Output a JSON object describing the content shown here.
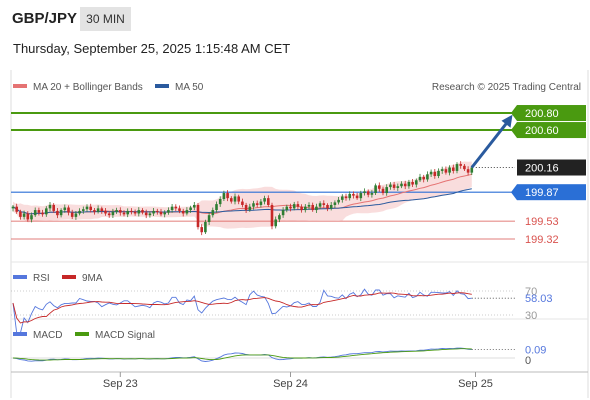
{
  "header": {
    "symbol": "GBP/JPY",
    "timeframe": "30 MIN",
    "datetime": "Thursday, September 25, 2025 1:15:48 AM CET",
    "copyright": "Research © 2025 Trading Central"
  },
  "colors": {
    "up": "#2e7d32",
    "down": "#c62828",
    "ma20": "#e57373",
    "ma50": "#2a5a9e",
    "band": "#f8d4d4",
    "target": "#4a9a10",
    "support": "#d9534f",
    "pivot": "#2a6fd6",
    "arrow": "#2a5a9e",
    "rsi": "#5577dd",
    "rsi_ma": "#c62828",
    "macd": "#5577dd",
    "macd_signal": "#4a9a10"
  },
  "chart_data": [
    {
      "type": "candlestick",
      "panel": "price",
      "legend": [
        {
          "label": "MA 20 + Bollinger Bands",
          "color_key": "ma20"
        },
        {
          "label": "MA 50",
          "color_key": "ma50"
        }
      ],
      "ylim": [
        199.05,
        201.0
      ],
      "x_ticks": [
        {
          "label": "Sep 23",
          "index": 29
        },
        {
          "label": "Sep 24",
          "index": 75
        },
        {
          "label": "Sep 25",
          "index": 125
        }
      ],
      "levels": [
        {
          "value": 200.8,
          "label": "200.80",
          "role": "target",
          "style": "label-box"
        },
        {
          "value": 200.6,
          "label": "200.60",
          "role": "target",
          "style": "label-box"
        },
        {
          "value": 200.16,
          "label": "200.16",
          "role": "last",
          "style": "dotted"
        },
        {
          "value": 199.87,
          "label": "199.87",
          "role": "pivot",
          "style": "label-box"
        },
        {
          "value": 199.53,
          "label": "199.53",
          "role": "support",
          "style": "text"
        },
        {
          "value": 199.32,
          "label": "199.32",
          "role": "support",
          "style": "text"
        }
      ],
      "arrow": {
        "from_index": 124,
        "from_value": 200.16,
        "to_index": 135,
        "to_value": 200.78
      },
      "close": [
        199.7,
        199.64,
        199.58,
        199.62,
        199.55,
        199.6,
        199.66,
        199.63,
        199.61,
        199.68,
        199.72,
        199.65,
        199.6,
        199.66,
        199.69,
        199.63,
        199.58,
        199.62,
        199.65,
        199.67,
        199.7,
        199.66,
        199.64,
        199.68,
        199.65,
        199.62,
        199.6,
        199.64,
        199.66,
        199.63,
        199.61,
        199.65,
        199.64,
        199.62,
        199.66,
        199.63,
        199.6,
        199.62,
        199.65,
        199.64,
        199.61,
        199.63,
        199.66,
        199.7,
        199.68,
        199.65,
        199.62,
        199.66,
        199.69,
        199.72,
        199.46,
        199.4,
        199.52,
        199.6,
        199.66,
        199.73,
        199.79,
        199.86,
        199.8,
        199.76,
        199.82,
        199.76,
        199.72,
        199.66,
        199.7,
        199.74,
        199.72,
        199.76,
        199.8,
        199.72,
        199.47,
        199.55,
        199.6,
        199.66,
        199.7,
        199.68,
        199.73,
        199.7,
        199.66,
        199.7,
        199.72,
        199.66,
        199.7,
        199.74,
        199.72,
        199.68,
        199.72,
        199.75,
        199.78,
        199.82,
        199.8,
        199.85,
        199.83,
        199.8,
        199.86,
        199.88,
        199.84,
        199.86,
        199.95,
        199.91,
        199.86,
        199.93,
        199.96,
        199.92,
        199.94,
        199.97,
        199.94,
        199.99,
        199.96,
        200.01,
        200.05,
        200.02,
        200.08,
        200.11,
        200.06,
        200.12,
        200.14,
        200.1,
        200.16,
        200.12,
        200.2,
        200.18,
        200.14,
        200.1,
        200.16
      ],
      "ma20_label": "MA 20",
      "ma50_label": "MA 50"
    },
    {
      "type": "line",
      "panel": "rsi",
      "legend": [
        {
          "label": "RSI",
          "color_key": "rsi"
        },
        {
          "label": "9MA",
          "color_key": "rsi_ma"
        }
      ],
      "ylim": [
        25,
        75
      ],
      "ticks": [
        {
          "label": "70",
          "value": 70
        },
        {
          "label": "30",
          "value": 30
        }
      ],
      "last_label": "58.03",
      "last_value": 58.03
    },
    {
      "type": "line",
      "panel": "macd",
      "legend": [
        {
          "label": "MACD",
          "color_key": "macd"
        },
        {
          "label": "MACD Signal",
          "color_key": "macd_signal"
        }
      ],
      "ticks": [
        {
          "label": "0",
          "value": 0
        }
      ],
      "last_label": "0.09",
      "last_value": 0.09
    }
  ]
}
